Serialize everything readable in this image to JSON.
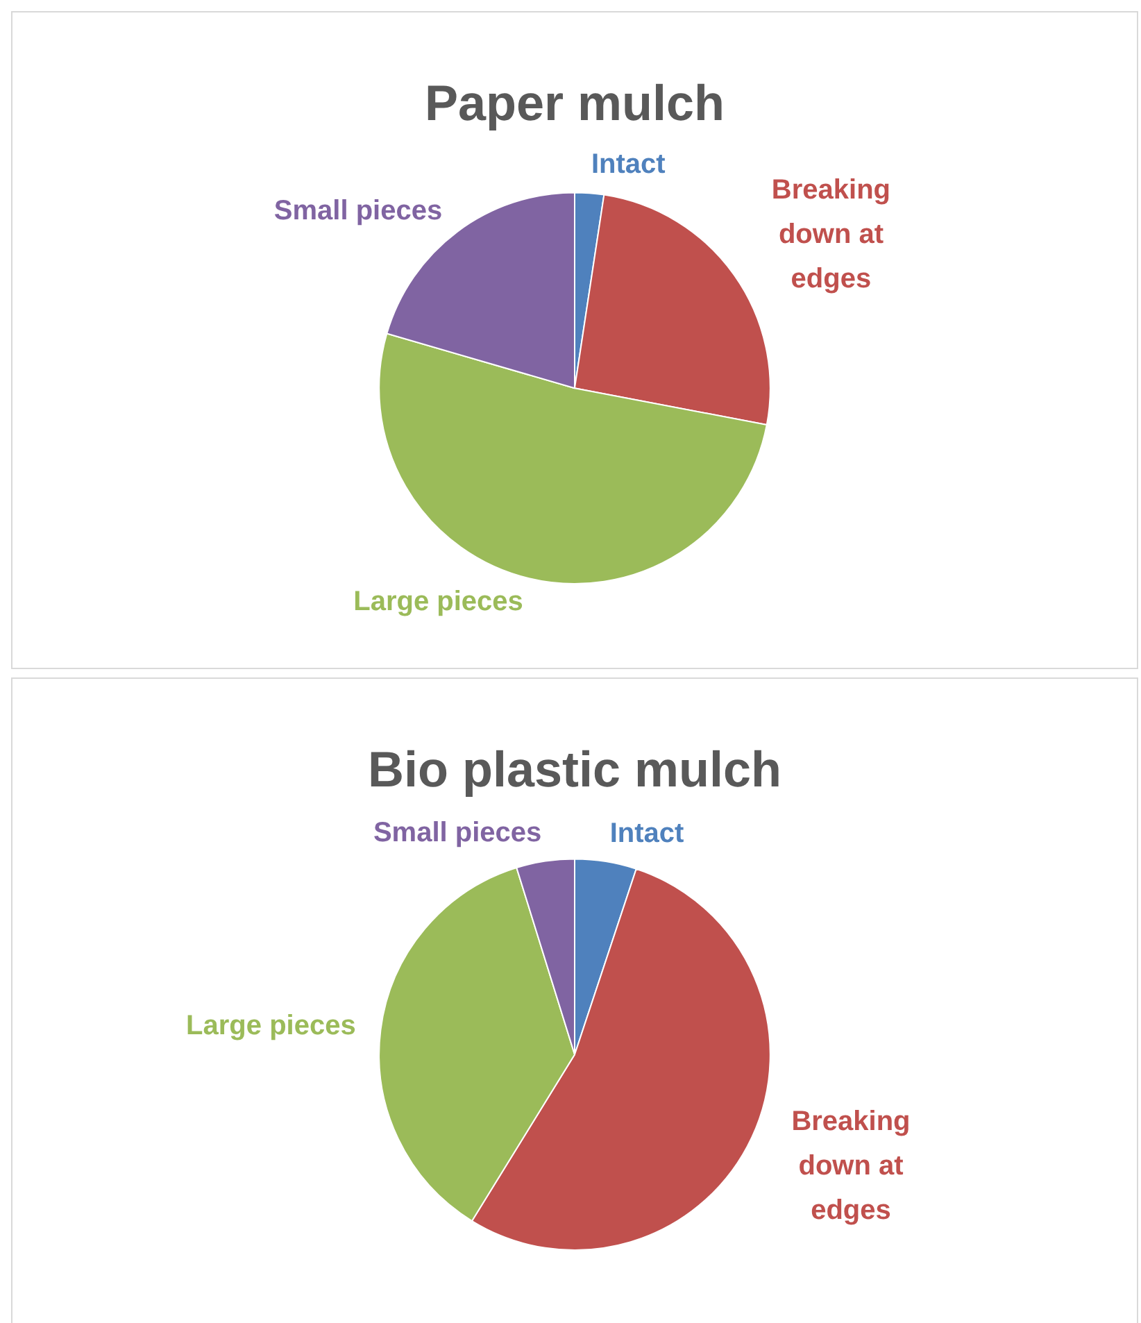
{
  "chart_data": [
    {
      "type": "pie",
      "title": "Paper mulch",
      "categories": [
        "Intact",
        "Breaking down at edges",
        "Large pieces",
        "Small pieces"
      ],
      "values": [
        2.4,
        25.6,
        51.5,
        20.5
      ],
      "colors": [
        "#4f81bd",
        "#c0504d",
        "#9bbb59",
        "#8064a2"
      ],
      "legend": false
    },
    {
      "type": "pie",
      "title": "Bio plastic mulch",
      "categories": [
        "Intact",
        "Breaking down at edges",
        "Large pieces",
        "Small pieces"
      ],
      "values": [
        5.1,
        53.7,
        36.4,
        4.8
      ],
      "colors": [
        "#4f81bd",
        "#c0504d",
        "#9bbb59",
        "#8064a2"
      ],
      "legend": false
    }
  ]
}
